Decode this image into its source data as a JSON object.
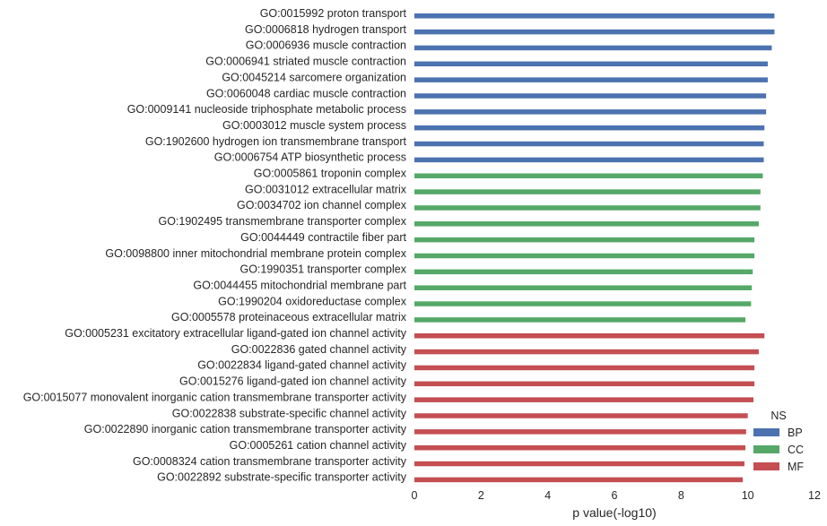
{
  "chart_data": {
    "type": "bar",
    "orientation": "horizontal",
    "xlabel": "p value(-log10)",
    "xlim": [
      0,
      12
    ],
    "xticks": [
      0,
      2,
      4,
      6,
      8,
      10,
      12
    ],
    "grid": false,
    "legend": {
      "title": "NS",
      "placement": "bottom-right",
      "entries": [
        {
          "name": "BP",
          "color": "#4c72b0"
        },
        {
          "name": "CC",
          "color": "#55a868"
        },
        {
          "name": "MF",
          "color": "#c44e52"
        }
      ]
    },
    "categories": [
      "GO:0015992 proton transport",
      "GO:0006818 hydrogen transport",
      "GO:0006936 muscle contraction",
      "GO:0006941 striated muscle contraction",
      "GO:0045214 sarcomere organization",
      "GO:0060048 cardiac muscle contraction",
      "GO:0009141 nucleoside triphosphate metabolic process",
      "GO:0003012 muscle system process",
      "GO:1902600 hydrogen ion transmembrane transport",
      "GO:0006754 ATP biosynthetic process",
      "GO:0005861 troponin complex",
      "GO:0031012 extracellular matrix",
      "GO:0034702 ion channel complex",
      "GO:1902495 transmembrane transporter complex",
      "GO:0044449 contractile fiber part",
      "GO:0098800 inner mitochondrial membrane protein complex",
      "GO:1990351 transporter complex",
      "GO:0044455 mitochondrial membrane part",
      "GO:1990204 oxidoreductase complex",
      "GO:0005578 proteinaceous extracellular matrix",
      "GO:0005231 excitatory extracellular ligand-gated ion channel activity",
      "GO:0022836 gated channel activity",
      "GO:0022834 ligand-gated channel activity",
      "GO:0015276 ligand-gated ion channel activity",
      "GO:0015077 monovalent inorganic cation transmembrane transporter activity",
      "GO:0022838 substrate-specific channel activity",
      "GO:0022890 inorganic cation transmembrane transporter activity",
      "GO:0005261 cation channel activity",
      "GO:0008324 cation transmembrane transporter activity",
      "GO:0022892 substrate-specific transporter activity"
    ],
    "groups": [
      "BP",
      "BP",
      "BP",
      "BP",
      "BP",
      "BP",
      "BP",
      "BP",
      "BP",
      "BP",
      "CC",
      "CC",
      "CC",
      "CC",
      "CC",
      "CC",
      "CC",
      "CC",
      "CC",
      "CC",
      "MF",
      "MF",
      "MF",
      "MF",
      "MF",
      "MF",
      "MF",
      "MF",
      "MF",
      "MF"
    ],
    "values": [
      10.8,
      10.8,
      10.72,
      10.6,
      10.6,
      10.55,
      10.55,
      10.5,
      10.48,
      10.48,
      10.45,
      10.38,
      10.38,
      10.33,
      10.2,
      10.2,
      10.15,
      10.12,
      10.1,
      9.93,
      10.5,
      10.33,
      10.2,
      10.2,
      10.17,
      10.0,
      9.95,
      9.93,
      9.9,
      9.85
    ]
  }
}
